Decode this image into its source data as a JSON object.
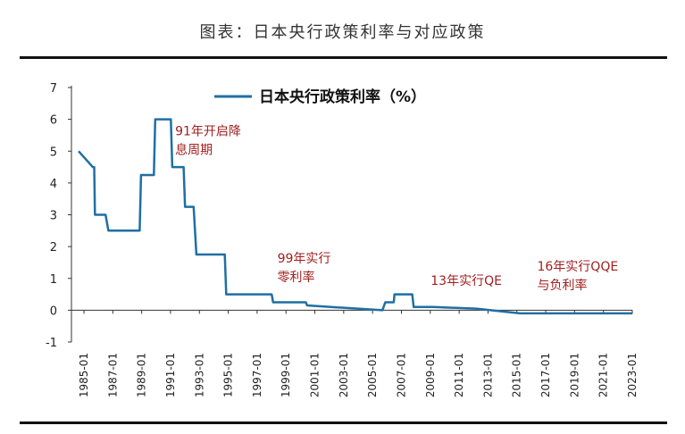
{
  "header": {
    "title": "图表：日本央行政策利率与对应政策"
  },
  "chart_data": {
    "type": "line",
    "title": "",
    "xlabel": "",
    "ylabel": "",
    "ylim": [
      -1,
      7
    ],
    "yticks": [
      "7",
      "6",
      "5",
      "4",
      "3",
      "2",
      "1",
      "0",
      "-1"
    ],
    "xticks": [
      "1985-01",
      "1987-01",
      "1989-01",
      "1991-01",
      "1993-01",
      "1995-01",
      "1997-01",
      "1999-01",
      "2001-01",
      "2003-01",
      "2005-01",
      "2007-01",
      "2009-01",
      "2011-01",
      "2013-01",
      "2015-01",
      "2017-01",
      "2019-01",
      "2021-01",
      "2023-01"
    ],
    "series": [
      {
        "name": "日本央行政策利率（%）",
        "color": "#1f6fa3",
        "points": [
          [
            1985.0,
            5.0
          ],
          [
            1986.0,
            4.5
          ],
          [
            1986.1,
            4.5
          ],
          [
            1986.15,
            3.0
          ],
          [
            1986.9,
            3.0
          ],
          [
            1987.1,
            2.5
          ],
          [
            1989.3,
            2.5
          ],
          [
            1989.4,
            4.25
          ],
          [
            1990.0,
            4.25
          ],
          [
            1990.3,
            4.25
          ],
          [
            1990.4,
            6.0
          ],
          [
            1991.5,
            6.0
          ],
          [
            1991.6,
            4.5
          ],
          [
            1992.4,
            4.5
          ],
          [
            1992.5,
            3.25
          ],
          [
            1993.1,
            3.25
          ],
          [
            1993.3,
            1.75
          ],
          [
            1995.3,
            1.75
          ],
          [
            1995.4,
            0.5
          ],
          [
            1998.6,
            0.5
          ],
          [
            1998.7,
            0.25
          ],
          [
            2001.0,
            0.25
          ],
          [
            2001.1,
            0.15
          ],
          [
            2006.4,
            0.0
          ],
          [
            2006.6,
            0.25
          ],
          [
            2007.2,
            0.25
          ],
          [
            2007.25,
            0.5
          ],
          [
            2008.5,
            0.5
          ],
          [
            2008.6,
            0.1
          ],
          [
            2010.0,
            0.1
          ],
          [
            2013.0,
            0.05
          ],
          [
            2016.1,
            -0.1
          ],
          [
            2024.0,
            -0.1
          ]
        ]
      }
    ],
    "annotations": [
      {
        "lines": [
          "91年开启降",
          "息周期"
        ],
        "x": 1991.8,
        "y": 5.5
      },
      {
        "lines": [
          "99年实行",
          "零利率"
        ],
        "x": 1999.0,
        "y": 1.5
      },
      {
        "lines": [
          "13年实行QE"
        ],
        "x": 2009.8,
        "y": 0.8
      },
      {
        "lines": [
          "16年实行QQE",
          "与负利率"
        ],
        "x": 2017.3,
        "y": 1.25
      }
    ]
  },
  "legend_label": "日本央行政策利率（%）"
}
